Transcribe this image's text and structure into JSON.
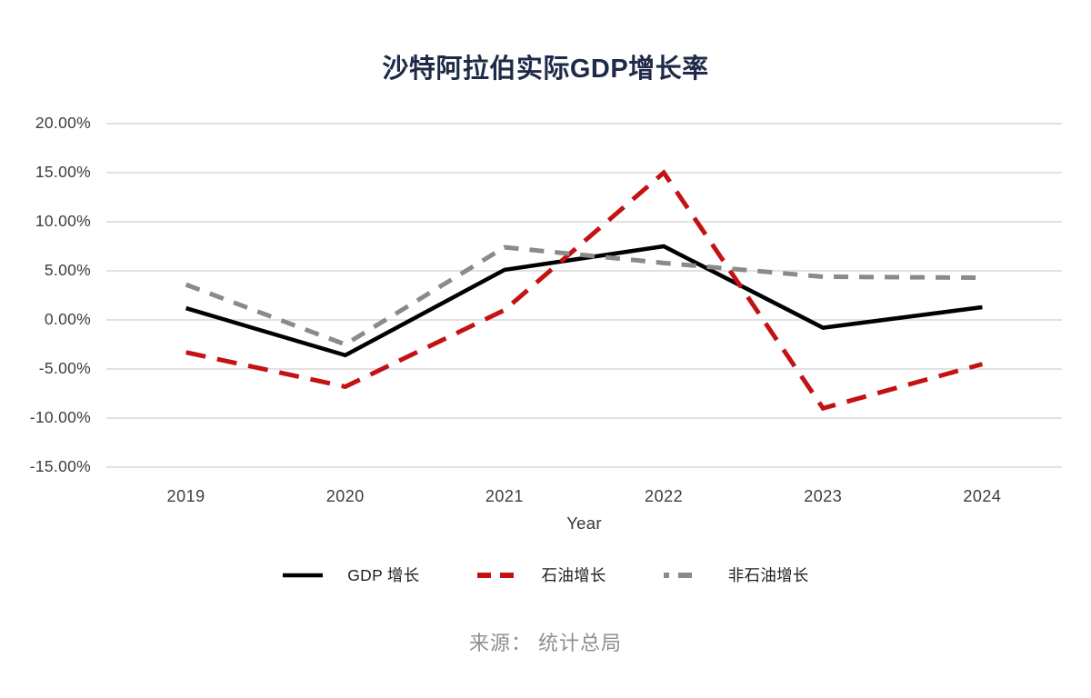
{
  "title": "沙特阿拉伯实际GDP增长率",
  "source": "来源： 统计总局",
  "chart_data": {
    "type": "line",
    "title": "沙特阿拉伯实际GDP增长率",
    "x": [
      "2019",
      "2020",
      "2021",
      "2022",
      "2023",
      "2024"
    ],
    "xlabel": "Year",
    "ylabel": "",
    "ylim": [
      -15,
      20
    ],
    "y_ticks": [
      {
        "value": 20,
        "label": "20.00%"
      },
      {
        "value": 15,
        "label": "15.00%"
      },
      {
        "value": 10,
        "label": "10.00%"
      },
      {
        "value": 5,
        "label": "5.00%"
      },
      {
        "value": 0,
        "label": "0.00%"
      },
      {
        "value": -5,
        "label": "-5.00%"
      },
      {
        "value": -10,
        "label": "-10.00%"
      },
      {
        "value": -15,
        "label": "-15.00%"
      }
    ],
    "grid": "horizontal",
    "legend_position": "bottom",
    "series": [
      {
        "name": "GDP 增长",
        "color": "#000000",
        "style": "solid",
        "values": [
          1.2,
          -3.6,
          5.1,
          7.5,
          -0.8,
          1.3
        ]
      },
      {
        "name": "石油增长",
        "color": "#c41114",
        "style": "dashed",
        "values": [
          -3.3,
          -6.8,
          1.0,
          15.0,
          -9.0,
          -4.5
        ]
      },
      {
        "name": "非石油增长",
        "color": "#8a8a8a",
        "style": "dashed",
        "values": [
          3.6,
          -2.5,
          7.4,
          5.8,
          4.4,
          4.3
        ]
      }
    ]
  },
  "colors": {
    "title": "#1e2a47",
    "gridline": "#d9d9d9",
    "tick_text": "#3d3d3d",
    "source_text": "#8f8f8f"
  }
}
